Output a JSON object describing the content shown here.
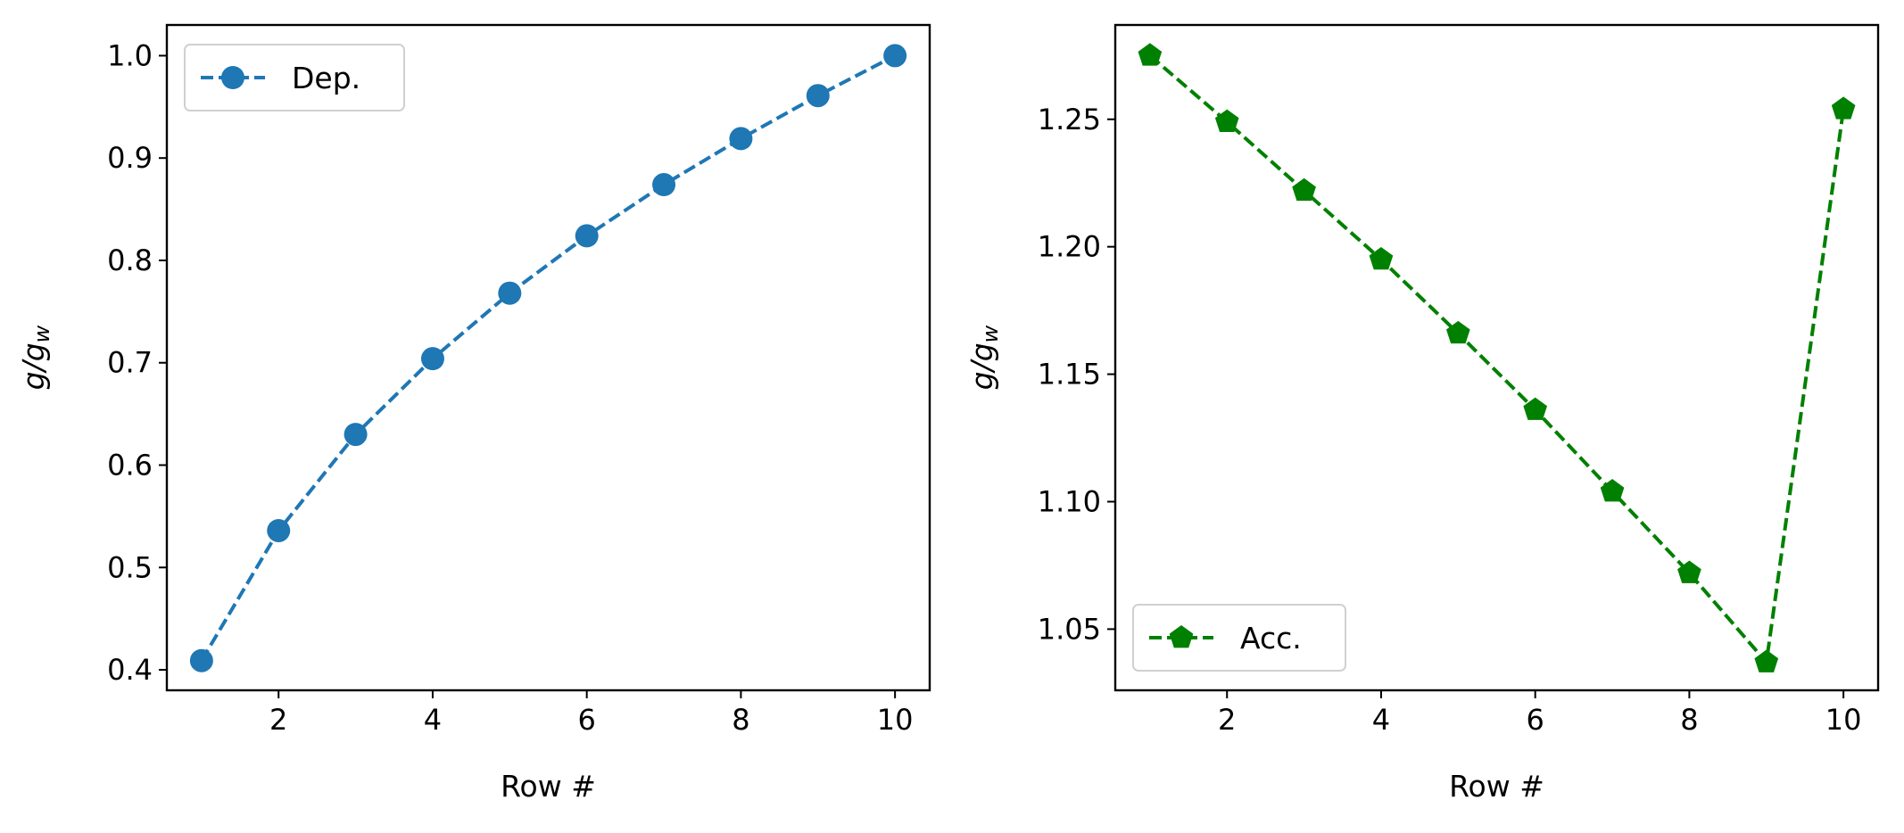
{
  "chart_data": [
    {
      "type": "line",
      "xlabel": "Row #",
      "ylabel_main": "g/g",
      "ylabel_sub": "w",
      "xlim": [
        0.55,
        10.45
      ],
      "ylim": [
        0.38,
        1.03
      ],
      "xticks": [
        2,
        4,
        6,
        8,
        10
      ],
      "yticks": [
        0.4,
        0.5,
        0.6,
        0.7,
        0.8,
        0.9,
        1.0
      ],
      "xtick_labels": [
        "2",
        "4",
        "6",
        "8",
        "10"
      ],
      "ytick_labels": [
        "0.4",
        "0.5",
        "0.6",
        "0.7",
        "0.8",
        "0.9",
        "1.0"
      ],
      "grid": false,
      "legend_position": "upper-left",
      "series": [
        {
          "name": "Dep.",
          "color": "#1f77b4",
          "marker": "circle",
          "linestyle": "dashed",
          "x": [
            1,
            2,
            3,
            4,
            5,
            6,
            7,
            8,
            9,
            10
          ],
          "y": [
            0.409,
            0.536,
            0.63,
            0.704,
            0.768,
            0.824,
            0.874,
            0.919,
            0.961,
            1.0
          ]
        }
      ]
    },
    {
      "type": "line",
      "xlabel": "Row #",
      "ylabel_main": "g/g",
      "ylabel_sub": "w",
      "xlim": [
        0.55,
        10.45
      ],
      "ylim": [
        1.026,
        1.287
      ],
      "xticks": [
        2,
        4,
        6,
        8,
        10
      ],
      "yticks": [
        1.05,
        1.1,
        1.15,
        1.2,
        1.25
      ],
      "xtick_labels": [
        "2",
        "4",
        "6",
        "8",
        "10"
      ],
      "ytick_labels": [
        "1.05",
        "1.10",
        "1.15",
        "1.20",
        "1.25"
      ],
      "grid": false,
      "legend_position": "lower-left",
      "series": [
        {
          "name": "Acc.",
          "color": "#008000",
          "marker": "pentagon",
          "linestyle": "dashed",
          "x": [
            1,
            2,
            3,
            4,
            5,
            6,
            7,
            8,
            9,
            10
          ],
          "y": [
            1.275,
            1.249,
            1.222,
            1.195,
            1.166,
            1.136,
            1.104,
            1.072,
            1.037,
            1.254
          ]
        }
      ]
    }
  ]
}
